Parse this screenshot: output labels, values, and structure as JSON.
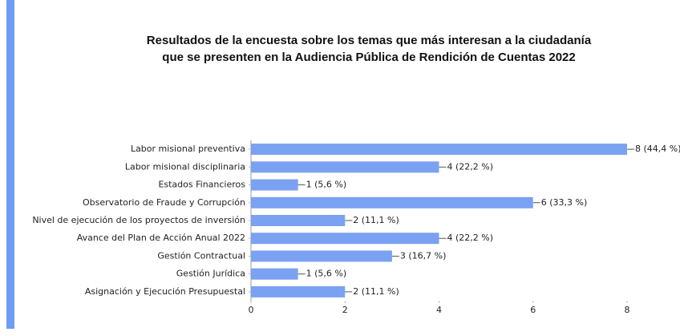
{
  "chart_data": {
    "type": "bar",
    "orientation": "horizontal",
    "title": "Resultados de la encuesta sobre los temas que más interesan a la ciudadanía que se presenten en la Audiencia Pública de Rendición de Cuentas 2022",
    "categories": [
      "Labor misional preventiva",
      "Labor misional disciplinaria",
      "Estados Financieros",
      "Observatorio de Fraude y Corrupción",
      "Nivel de ejecución de los proyectos de inversión",
      "Avance del Plan de Acción Anual 2022",
      "Gestión Contractual",
      "Gestión Jurídica",
      "Asignación y Ejecución Presupuestal"
    ],
    "values": [
      8,
      4,
      1,
      6,
      2,
      4,
      3,
      1,
      2
    ],
    "value_labels": [
      "8 (44,4 %)",
      "4 (22,2 %)",
      "1 (5,6 %)",
      "6 (33,3 %)",
      "2 (11,1 %)",
      "4 (22,2 %)",
      "3 (16,7 %)",
      "1 (5,6 %)",
      "2 (11,1 %)"
    ],
    "color": "#7aa1f2",
    "xlim": [
      0,
      8
    ],
    "xticks": [
      0,
      2,
      4,
      6,
      8
    ],
    "grid": false
  }
}
